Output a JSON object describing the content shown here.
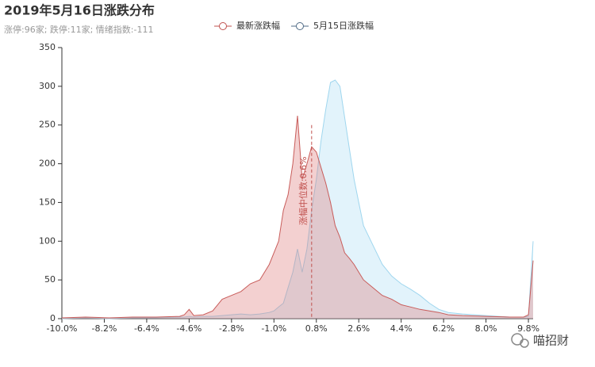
{
  "chart_data": {
    "type": "area",
    "title": "2019年5月16日涨跌分布",
    "subtitle": "涨停:96家; 跌停:11家; 情绪指数:-111",
    "watermark": "喵招财",
    "x": [
      -10,
      -9,
      -8,
      -7,
      -6,
      -5,
      -4.8,
      -4.6,
      -4.4,
      -4,
      -3.6,
      -3.2,
      -2.8,
      -2.4,
      -2,
      -1.6,
      -1.2,
      -1.0,
      -0.8,
      -0.6,
      -0.4,
      -0.2,
      0,
      0.2,
      0.4,
      0.6,
      0.8,
      1.0,
      1.2,
      1.4,
      1.6,
      1.8,
      2.0,
      2.2,
      2.4,
      2.6,
      2.8,
      3.2,
      3.6,
      4.0,
      4.4,
      4.8,
      5.2,
      5.6,
      6.0,
      6.4,
      7,
      8,
      9,
      9.6,
      9.8,
      10
    ],
    "series": [
      {
        "name": "5月15日涨跌幅",
        "color": "#9fd6ee",
        "fill": "rgba(173,220,243,0.35)",
        "legend_color": "#4f6a85",
        "values": [
          0,
          1,
          0,
          1,
          1,
          2,
          2,
          3,
          2,
          3,
          3,
          4,
          5,
          6,
          5,
          6,
          8,
          10,
          15,
          20,
          40,
          60,
          90,
          60,
          90,
          140,
          180,
          230,
          270,
          305,
          308,
          300,
          260,
          220,
          180,
          150,
          120,
          95,
          70,
          55,
          45,
          38,
          30,
          20,
          12,
          8,
          6,
          4,
          2,
          2,
          3,
          100
        ]
      },
      {
        "name": "最新涨跌幅",
        "color": "#c85c5a",
        "fill": "rgba(220,120,120,0.35)",
        "legend_color": "#c0504d",
        "values": [
          1,
          2,
          1,
          2,
          2,
          3,
          5,
          12,
          4,
          5,
          10,
          25,
          30,
          35,
          45,
          50,
          70,
          85,
          100,
          140,
          160,
          200,
          262,
          180,
          200,
          222,
          215,
          195,
          175,
          150,
          120,
          105,
          85,
          78,
          70,
          60,
          50,
          40,
          30,
          25,
          18,
          15,
          12,
          10,
          8,
          5,
          4,
          3,
          2,
          2,
          5,
          75
        ]
      }
    ],
    "median": {
      "value": 0.6,
      "label": "涨幅中位数:0.6%"
    },
    "xlim": [
      -10,
      10
    ],
    "xticks": [
      {
        "value": -10,
        "label": "-10.0%"
      },
      {
        "value": -8.2,
        "label": "-8.2%"
      },
      {
        "value": -6.4,
        "label": "-6.4%"
      },
      {
        "value": -4.6,
        "label": "-4.6%"
      },
      {
        "value": -2.8,
        "label": "-2.8%"
      },
      {
        "value": -1.0,
        "label": "-1.0%"
      },
      {
        "value": 0.8,
        "label": "0.8%"
      },
      {
        "value": 2.6,
        "label": "2.6%"
      },
      {
        "value": 4.4,
        "label": "4.4%"
      },
      {
        "value": 6.2,
        "label": "6.2%"
      },
      {
        "value": 8.0,
        "label": "8.0%"
      },
      {
        "value": 9.8,
        "label": "9.8%"
      }
    ],
    "ylim": [
      0,
      350
    ],
    "yticks": [
      0,
      50,
      100,
      150,
      200,
      250,
      300,
      350
    ]
  }
}
